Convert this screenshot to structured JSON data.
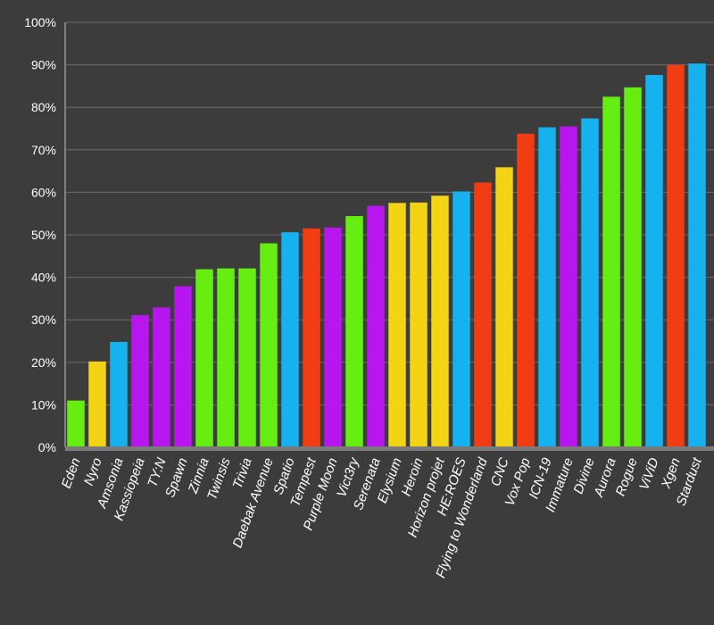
{
  "chart_data": {
    "type": "bar",
    "title": "",
    "xlabel": "",
    "ylabel": "",
    "ylim": [
      0,
      100
    ],
    "y_tick_step": 10,
    "y_tick_suffix": "%",
    "grid": true,
    "legend": "none",
    "categories": [
      "Eden",
      "Nyro",
      "Amsonia",
      "Kassiopeia",
      "TY:N",
      "Spawn",
      "Zinnia",
      "Twinsis",
      "Trivia",
      "Daebak Avenue",
      "Spatio",
      "Tempest",
      "Purple Moon",
      "Vict3ry",
      "Serenata",
      "Elysium",
      "Heroin",
      "Horizon projet",
      "HE:ROES",
      "Flying to Wonderland",
      "CNC",
      "Vox Pop",
      "ICN-19",
      "Immature",
      "Divine",
      "Aurora",
      "Rogue",
      "ViViD",
      "Xgen",
      "Stardust"
    ],
    "values": [
      11.0,
      20.2,
      24.8,
      31.1,
      32.9,
      37.9,
      41.9,
      42.1,
      42.1,
      48.0,
      50.6,
      51.5,
      51.7,
      54.4,
      56.8,
      57.5,
      57.6,
      59.2,
      60.2,
      62.3,
      65.9,
      73.8,
      75.3,
      75.5,
      77.4,
      82.5,
      84.7,
      87.6,
      90.0,
      90.3
    ],
    "bar_colors": [
      "#66ee11",
      "#f2d414",
      "#16b2f0",
      "#b716f0",
      "#b716f0",
      "#b716f0",
      "#66ee11",
      "#66ee11",
      "#66ee11",
      "#66ee11",
      "#16b2f0",
      "#f23c14",
      "#b716f0",
      "#66ee11",
      "#b716f0",
      "#f2d414",
      "#f2d414",
      "#f2d414",
      "#16b2f0",
      "#f23c14",
      "#f2d414",
      "#f23c14",
      "#16b2f0",
      "#b716f0",
      "#16b2f0",
      "#66ee11",
      "#66ee11",
      "#16b2f0",
      "#f23c14",
      "#16b2f0"
    ],
    "colors": {
      "background": "#3c3c3c",
      "grid": "#6a6a6a",
      "axis": "#808080",
      "text": "#ffffff"
    }
  }
}
